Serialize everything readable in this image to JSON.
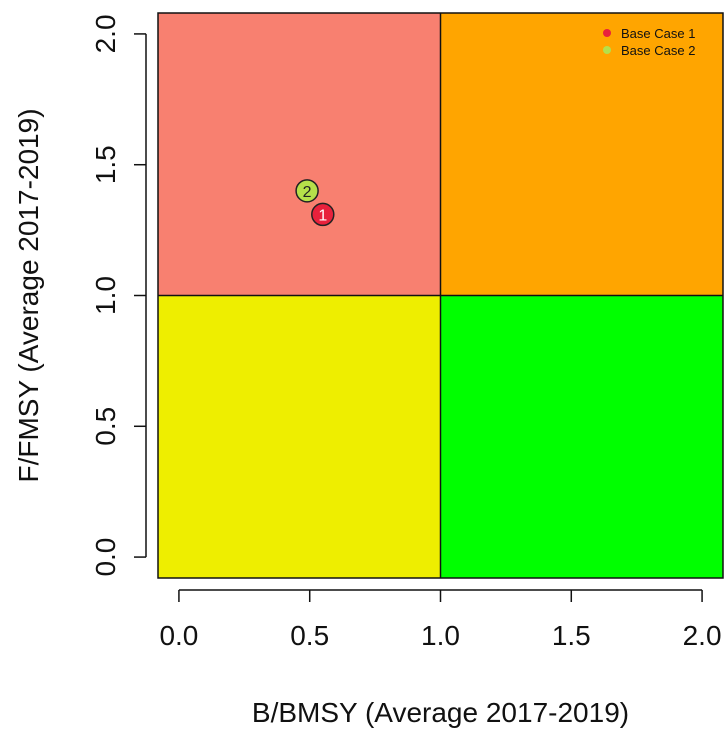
{
  "chart_data": {
    "type": "scatter",
    "title": "",
    "xlabel": "B/BMSY (Average 2017-2019)",
    "ylabel": "F/FMSY (Average 2017-2019)",
    "xlim": [
      -0.08,
      2.08
    ],
    "ylim": [
      -0.08,
      2.08
    ],
    "x_ticks": [
      "0.0",
      "0.5",
      "1.0",
      "1.5",
      "2.0"
    ],
    "y_ticks": [
      "0.0",
      "0.5",
      "1.0",
      "1.5",
      "2.0"
    ],
    "quadrants": [
      {
        "x": [
          -0.08,
          1.0
        ],
        "y": [
          1.0,
          2.08
        ],
        "color": "#f88070"
      },
      {
        "x": [
          1.0,
          2.08
        ],
        "y": [
          1.0,
          2.08
        ],
        "color": "#ffa500"
      },
      {
        "x": [
          -0.08,
          1.0
        ],
        "y": [
          -0.08,
          1.0
        ],
        "color": "#eeee00"
      },
      {
        "x": [
          1.0,
          2.08
        ],
        "y": [
          -0.08,
          1.0
        ],
        "color": "#00ff00"
      }
    ],
    "series": [
      {
        "name": "Base Case 1",
        "label": "1",
        "x": 0.55,
        "y": 1.31,
        "color": "#e8213c",
        "text_color": "#ffffff"
      },
      {
        "name": "Base Case 2",
        "label": "2",
        "x": 0.49,
        "y": 1.4,
        "color": "#b5e04a",
        "text_color": "#222222"
      }
    ],
    "legend_position": "top-right",
    "grid": false
  }
}
